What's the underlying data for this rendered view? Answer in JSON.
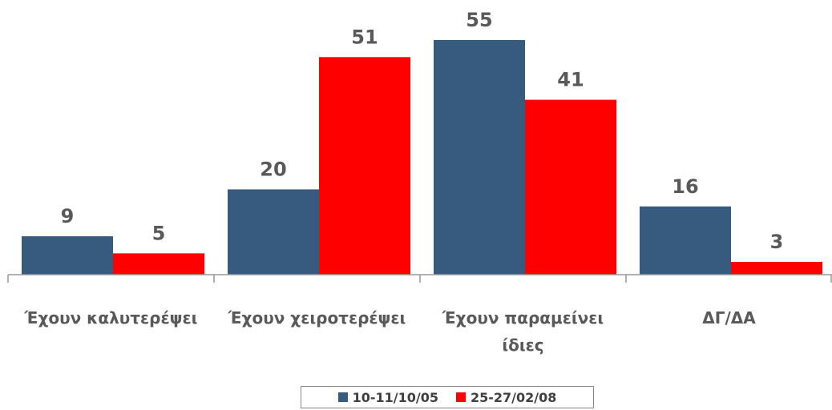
{
  "chart_data": {
    "type": "bar",
    "categories": [
      "Έχουν καλυτερέψει",
      "Έχουν χειροτερέψει",
      "Έχουν παραμείνει ίδιες",
      "ΔΓ/ΔΑ"
    ],
    "series": [
      {
        "name": "10-11/10/05",
        "color": "#375a7f",
        "values": [
          9,
          20,
          55,
          16
        ]
      },
      {
        "name": "25-27/02/08",
        "color": "#ff0000",
        "values": [
          5,
          51,
          41,
          3
        ]
      }
    ],
    "legend": "bottom"
  }
}
